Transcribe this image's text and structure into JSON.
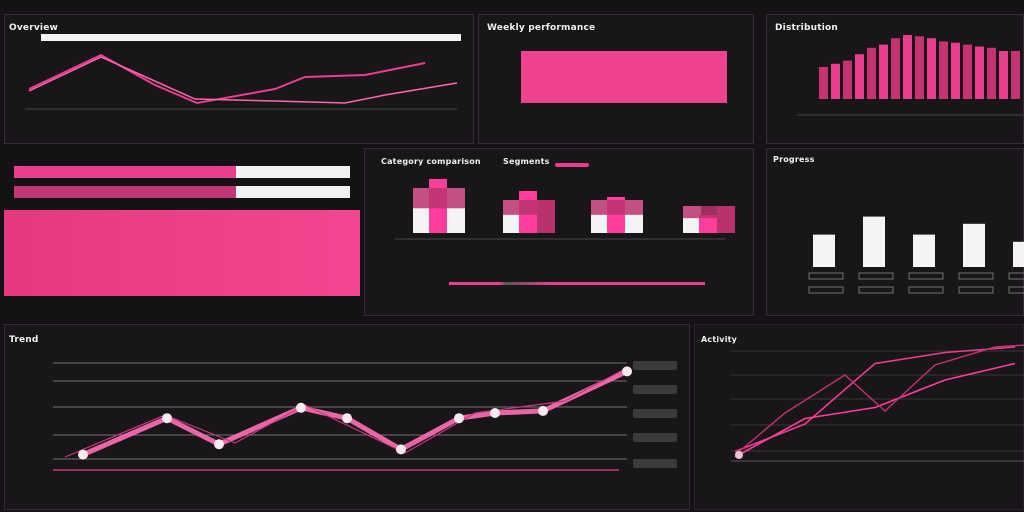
{
  "colors": {
    "accent": "#ff3d9a",
    "accent_dark": "#b8336e",
    "bg": "#141215",
    "panel": "#19161a",
    "white": "#f4f4f4"
  },
  "p1": {
    "title": "Overview",
    "x_labels": [
      "",
      "",
      ""
    ]
  },
  "p2": {
    "title": "Weekly performance",
    "x_labels": [
      "",
      "",
      ""
    ]
  },
  "p3": {
    "title": "Distribution",
    "x_labels": [
      ""
    ]
  },
  "p4": {
    "rows": [
      {
        "a": "",
        "b": ""
      },
      {
        "a": "",
        "b": ""
      },
      {
        "a": "",
        "b": ""
      }
    ]
  },
  "p5": {
    "title": "Category comparison",
    "subtitle": "Segments",
    "groups": [
      "",
      "",
      ""
    ]
  },
  "p6": {
    "title": "Progress"
  },
  "p7": {
    "title": "Trend",
    "ylabel": "",
    "chips": [
      "",
      "",
      "",
      "",
      ""
    ]
  },
  "p8": {
    "title": "Activity",
    "x_ticks": [
      "",
      "",
      "",
      "",
      ""
    ]
  },
  "chart_data": [
    {
      "type": "line",
      "title": "Overview",
      "series": [
        {
          "values": [
            0.2,
            0.9,
            0.5,
            0.2,
            0.2,
            0.5,
            0.55,
            0.4,
            0.6
          ]
        },
        {
          "values": [
            0.2,
            0.95,
            0.05,
            0.05,
            0.05,
            0.1,
            0.3,
            0.35
          ]
        }
      ]
    },
    {
      "type": "bar",
      "title": "Weekly performance",
      "values": [
        1
      ]
    },
    {
      "type": "bar",
      "title": "Distribution",
      "values": [
        0.5,
        0.55,
        0.6,
        0.7,
        0.8,
        0.85,
        0.95,
        1.0,
        0.98,
        0.95,
        0.9,
        0.88,
        0.85,
        0.82,
        0.8,
        0.75,
        0.75
      ]
    },
    {
      "type": "bar",
      "title": "Segments",
      "series": [
        {
          "values": [
            0.9,
            0.7,
            0.6,
            0.3
          ]
        },
        {
          "values": [
            0.75,
            0.55,
            0.55,
            0.45
          ]
        }
      ]
    },
    {
      "type": "bar",
      "title": "Progress",
      "values": [
        0.45,
        0.7,
        0.45,
        0.6,
        0.35
      ]
    },
    {
      "type": "line",
      "title": "Trend",
      "values": [
        0.1,
        0.45,
        0.2,
        0.55,
        0.45,
        0.15,
        0.45,
        0.5,
        0.52,
        0.9
      ]
    },
    {
      "type": "line",
      "title": "Activity",
      "series": [
        {
          "values": [
            0.05,
            0.3,
            0.85,
            0.95,
            1.0
          ]
        },
        {
          "values": [
            0.0,
            0.35,
            0.45,
            0.7,
            0.85
          ]
        }
      ]
    }
  ]
}
